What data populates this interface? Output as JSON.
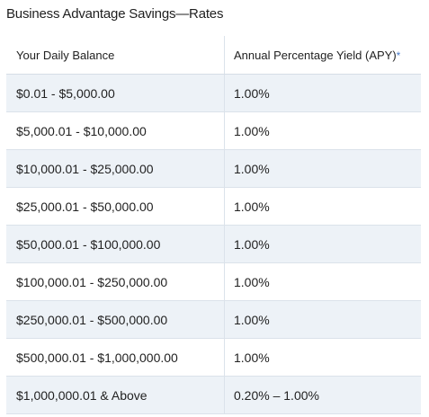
{
  "title": "Business Advantage Savings—Rates",
  "table": {
    "headers": {
      "balance": "Your Daily Balance",
      "apy": "Annual Percentage Yield (APY)",
      "apy_footnote_mark": "*"
    },
    "rows": [
      {
        "balance": "$0.01 - $5,000.00",
        "apy": "1.00%"
      },
      {
        "balance": "$5,000.01 - $10,000.00",
        "apy": "1.00%"
      },
      {
        "balance": "$10,000.01 - $25,000.00",
        "apy": "1.00%"
      },
      {
        "balance": "$25,000.01 - $50,000.00",
        "apy": "1.00%"
      },
      {
        "balance": "$50,000.01 - $100,000.00",
        "apy": "1.00%"
      },
      {
        "balance": "$100,000.01 - $250,000.00",
        "apy": "1.00%"
      },
      {
        "balance": "$250,000.01 - $500,000.00",
        "apy": "1.00%"
      },
      {
        "balance": "$500,000.01 - $1,000,000.00",
        "apy": "1.00%"
      },
      {
        "balance": "$1,000,000.01 & Above",
        "apy": "0.20% – 1.00%"
      }
    ]
  },
  "colors": {
    "stripe": "#edf2f7",
    "border": "#dbe2ea",
    "footnote_link": "#4a7cc9"
  }
}
